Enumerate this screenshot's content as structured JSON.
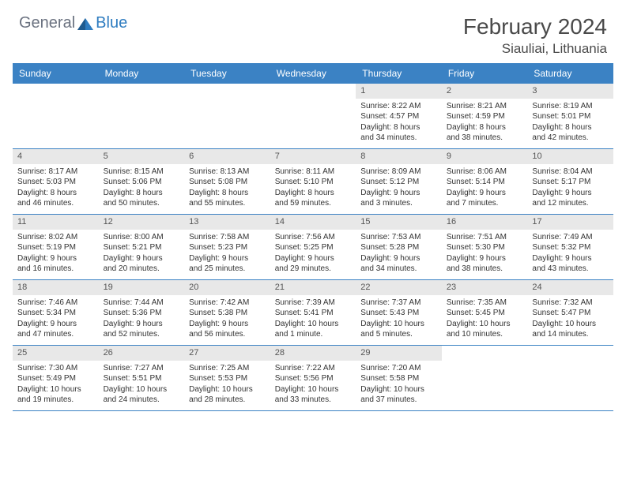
{
  "logo": {
    "general": "General",
    "blue": "Blue"
  },
  "title": "February 2024",
  "location": "Siauliai, Lithuania",
  "colors": {
    "header_bg": "#3b82c4",
    "header_text": "#ffffff",
    "daynum_bg": "#e8e8e8",
    "border": "#3b82c4",
    "text": "#333333",
    "title_text": "#4a4a4a",
    "logo_gray": "#6b7280",
    "logo_blue": "#2e7cc0",
    "page_bg": "#ffffff"
  },
  "weekdays": [
    "Sunday",
    "Monday",
    "Tuesday",
    "Wednesday",
    "Thursday",
    "Friday",
    "Saturday"
  ],
  "weeks": [
    [
      {
        "n": "",
        "sr": "",
        "ss": "",
        "d1": "",
        "d2": ""
      },
      {
        "n": "",
        "sr": "",
        "ss": "",
        "d1": "",
        "d2": ""
      },
      {
        "n": "",
        "sr": "",
        "ss": "",
        "d1": "",
        "d2": ""
      },
      {
        "n": "",
        "sr": "",
        "ss": "",
        "d1": "",
        "d2": ""
      },
      {
        "n": "1",
        "sr": "Sunrise: 8:22 AM",
        "ss": "Sunset: 4:57 PM",
        "d1": "Daylight: 8 hours",
        "d2": "and 34 minutes."
      },
      {
        "n": "2",
        "sr": "Sunrise: 8:21 AM",
        "ss": "Sunset: 4:59 PM",
        "d1": "Daylight: 8 hours",
        "d2": "and 38 minutes."
      },
      {
        "n": "3",
        "sr": "Sunrise: 8:19 AM",
        "ss": "Sunset: 5:01 PM",
        "d1": "Daylight: 8 hours",
        "d2": "and 42 minutes."
      }
    ],
    [
      {
        "n": "4",
        "sr": "Sunrise: 8:17 AM",
        "ss": "Sunset: 5:03 PM",
        "d1": "Daylight: 8 hours",
        "d2": "and 46 minutes."
      },
      {
        "n": "5",
        "sr": "Sunrise: 8:15 AM",
        "ss": "Sunset: 5:06 PM",
        "d1": "Daylight: 8 hours",
        "d2": "and 50 minutes."
      },
      {
        "n": "6",
        "sr": "Sunrise: 8:13 AM",
        "ss": "Sunset: 5:08 PM",
        "d1": "Daylight: 8 hours",
        "d2": "and 55 minutes."
      },
      {
        "n": "7",
        "sr": "Sunrise: 8:11 AM",
        "ss": "Sunset: 5:10 PM",
        "d1": "Daylight: 8 hours",
        "d2": "and 59 minutes."
      },
      {
        "n": "8",
        "sr": "Sunrise: 8:09 AM",
        "ss": "Sunset: 5:12 PM",
        "d1": "Daylight: 9 hours",
        "d2": "and 3 minutes."
      },
      {
        "n": "9",
        "sr": "Sunrise: 8:06 AM",
        "ss": "Sunset: 5:14 PM",
        "d1": "Daylight: 9 hours",
        "d2": "and 7 minutes."
      },
      {
        "n": "10",
        "sr": "Sunrise: 8:04 AM",
        "ss": "Sunset: 5:17 PM",
        "d1": "Daylight: 9 hours",
        "d2": "and 12 minutes."
      }
    ],
    [
      {
        "n": "11",
        "sr": "Sunrise: 8:02 AM",
        "ss": "Sunset: 5:19 PM",
        "d1": "Daylight: 9 hours",
        "d2": "and 16 minutes."
      },
      {
        "n": "12",
        "sr": "Sunrise: 8:00 AM",
        "ss": "Sunset: 5:21 PM",
        "d1": "Daylight: 9 hours",
        "d2": "and 20 minutes."
      },
      {
        "n": "13",
        "sr": "Sunrise: 7:58 AM",
        "ss": "Sunset: 5:23 PM",
        "d1": "Daylight: 9 hours",
        "d2": "and 25 minutes."
      },
      {
        "n": "14",
        "sr": "Sunrise: 7:56 AM",
        "ss": "Sunset: 5:25 PM",
        "d1": "Daylight: 9 hours",
        "d2": "and 29 minutes."
      },
      {
        "n": "15",
        "sr": "Sunrise: 7:53 AM",
        "ss": "Sunset: 5:28 PM",
        "d1": "Daylight: 9 hours",
        "d2": "and 34 minutes."
      },
      {
        "n": "16",
        "sr": "Sunrise: 7:51 AM",
        "ss": "Sunset: 5:30 PM",
        "d1": "Daylight: 9 hours",
        "d2": "and 38 minutes."
      },
      {
        "n": "17",
        "sr": "Sunrise: 7:49 AM",
        "ss": "Sunset: 5:32 PM",
        "d1": "Daylight: 9 hours",
        "d2": "and 43 minutes."
      }
    ],
    [
      {
        "n": "18",
        "sr": "Sunrise: 7:46 AM",
        "ss": "Sunset: 5:34 PM",
        "d1": "Daylight: 9 hours",
        "d2": "and 47 minutes."
      },
      {
        "n": "19",
        "sr": "Sunrise: 7:44 AM",
        "ss": "Sunset: 5:36 PM",
        "d1": "Daylight: 9 hours",
        "d2": "and 52 minutes."
      },
      {
        "n": "20",
        "sr": "Sunrise: 7:42 AM",
        "ss": "Sunset: 5:38 PM",
        "d1": "Daylight: 9 hours",
        "d2": "and 56 minutes."
      },
      {
        "n": "21",
        "sr": "Sunrise: 7:39 AM",
        "ss": "Sunset: 5:41 PM",
        "d1": "Daylight: 10 hours",
        "d2": "and 1 minute."
      },
      {
        "n": "22",
        "sr": "Sunrise: 7:37 AM",
        "ss": "Sunset: 5:43 PM",
        "d1": "Daylight: 10 hours",
        "d2": "and 5 minutes."
      },
      {
        "n": "23",
        "sr": "Sunrise: 7:35 AM",
        "ss": "Sunset: 5:45 PM",
        "d1": "Daylight: 10 hours",
        "d2": "and 10 minutes."
      },
      {
        "n": "24",
        "sr": "Sunrise: 7:32 AM",
        "ss": "Sunset: 5:47 PM",
        "d1": "Daylight: 10 hours",
        "d2": "and 14 minutes."
      }
    ],
    [
      {
        "n": "25",
        "sr": "Sunrise: 7:30 AM",
        "ss": "Sunset: 5:49 PM",
        "d1": "Daylight: 10 hours",
        "d2": "and 19 minutes."
      },
      {
        "n": "26",
        "sr": "Sunrise: 7:27 AM",
        "ss": "Sunset: 5:51 PM",
        "d1": "Daylight: 10 hours",
        "d2": "and 24 minutes."
      },
      {
        "n": "27",
        "sr": "Sunrise: 7:25 AM",
        "ss": "Sunset: 5:53 PM",
        "d1": "Daylight: 10 hours",
        "d2": "and 28 minutes."
      },
      {
        "n": "28",
        "sr": "Sunrise: 7:22 AM",
        "ss": "Sunset: 5:56 PM",
        "d1": "Daylight: 10 hours",
        "d2": "and 33 minutes."
      },
      {
        "n": "29",
        "sr": "Sunrise: 7:20 AM",
        "ss": "Sunset: 5:58 PM",
        "d1": "Daylight: 10 hours",
        "d2": "and 37 minutes."
      },
      {
        "n": "",
        "sr": "",
        "ss": "",
        "d1": "",
        "d2": ""
      },
      {
        "n": "",
        "sr": "",
        "ss": "",
        "d1": "",
        "d2": ""
      }
    ]
  ]
}
